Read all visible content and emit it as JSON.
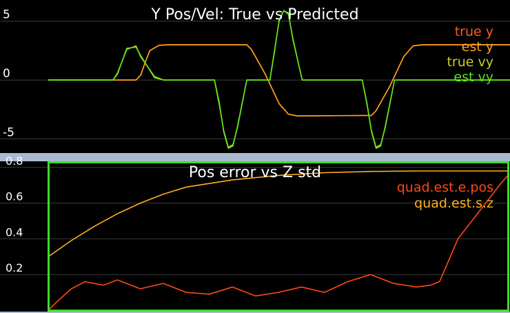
{
  "colors": {
    "frame": "#a9b9cf",
    "plot_bg": "#000000",
    "grid": "#3c3c3c",
    "axis_text": "#ffffff",
    "active_border": "#3ddc2a"
  },
  "chart_data": [
    {
      "type": "line",
      "title": "Y Pos/Vel: True vs Predicted",
      "xlabel": "",
      "ylabel": "",
      "ylim": [
        -6.2,
        6.8
      ],
      "xlim": [
        0,
        1
      ],
      "yticks": [
        "5",
        "0",
        "-5"
      ],
      "ytick_values": [
        5,
        0,
        -5
      ],
      "grid": true,
      "legend_placement": "top-right",
      "series": [
        {
          "name": "true y",
          "color": "#ff5a1e",
          "x": [
            0.0,
            0.19,
            0.2,
            0.21,
            0.22,
            0.24,
            0.26,
            0.43,
            0.44,
            0.47,
            0.5,
            0.52,
            0.54,
            0.7,
            0.71,
            0.74,
            0.77,
            0.79,
            0.81,
            1.0
          ],
          "values": [
            0,
            0,
            0.4,
            1.5,
            2.5,
            2.95,
            3.0,
            3.0,
            2.6,
            0.5,
            -2.0,
            -2.9,
            -3.05,
            -3.0,
            -2.6,
            -0.5,
            2.0,
            2.9,
            3.0,
            3.0
          ]
        },
        {
          "name": "est y",
          "color": "#ffa21e",
          "x": [
            0.0,
            0.19,
            0.2,
            0.21,
            0.22,
            0.24,
            0.26,
            0.43,
            0.44,
            0.47,
            0.5,
            0.52,
            0.54,
            0.7,
            0.71,
            0.74,
            0.77,
            0.79,
            0.81,
            1.0
          ],
          "values": [
            0,
            0,
            0.4,
            1.5,
            2.5,
            2.95,
            3.0,
            3.0,
            2.6,
            0.5,
            -2.0,
            -2.9,
            -3.05,
            -3.0,
            -2.6,
            -0.5,
            2.0,
            2.9,
            3.0,
            3.0
          ]
        },
        {
          "name": "true vy",
          "color": "#c8d21e",
          "x": [
            0.0,
            0.14,
            0.15,
            0.17,
            0.19,
            0.2,
            0.23,
            0.25,
            0.36,
            0.37,
            0.38,
            0.39,
            0.4,
            0.41,
            0.43,
            0.48,
            0.49,
            0.5,
            0.51,
            0.52,
            0.53,
            0.55,
            0.68,
            0.69,
            0.7,
            0.71,
            0.72,
            0.73,
            0.75,
            1.0
          ],
          "values": [
            0,
            0,
            0.6,
            2.6,
            2.9,
            2.0,
            0.3,
            0.0,
            0.0,
            -2.0,
            -4.3,
            -5.7,
            -5.5,
            -4.0,
            0.0,
            0.0,
            2.5,
            5.0,
            5.9,
            5.6,
            3.5,
            0.0,
            0.0,
            -2.0,
            -4.3,
            -5.7,
            -5.5,
            -4.0,
            0.0,
            0.0
          ]
        },
        {
          "name": "est vy",
          "color": "#5ae61e",
          "x": [
            0.0,
            0.14,
            0.15,
            0.17,
            0.19,
            0.2,
            0.23,
            0.25,
            0.36,
            0.37,
            0.38,
            0.39,
            0.4,
            0.41,
            0.43,
            0.48,
            0.49,
            0.5,
            0.51,
            0.52,
            0.53,
            0.55,
            0.68,
            0.69,
            0.7,
            0.71,
            0.72,
            0.73,
            0.75,
            1.0
          ],
          "values": [
            0,
            0,
            0.5,
            2.7,
            2.8,
            2.1,
            0.2,
            0.0,
            0.0,
            -1.8,
            -4.4,
            -5.8,
            -5.6,
            -3.9,
            0.0,
            0.0,
            2.4,
            5.1,
            5.9,
            5.7,
            3.4,
            0.0,
            0.0,
            -1.9,
            -4.4,
            -5.8,
            -5.6,
            -3.9,
            0.0,
            0.0
          ]
        }
      ]
    },
    {
      "type": "line",
      "title": "Pos error vs Z std",
      "xlabel": "",
      "ylabel": "",
      "ylim": [
        0.0,
        0.83
      ],
      "xlim": [
        0,
        1
      ],
      "yticks": [
        "0.8",
        "0.6",
        "0.4",
        "0.2"
      ],
      "ytick_values": [
        0.8,
        0.6,
        0.4,
        0.2
      ],
      "grid": true,
      "legend_placement": "top-right",
      "series": [
        {
          "name": "quad.est.e.pos",
          "color": "#ff4a12",
          "x": [
            0.0,
            0.02,
            0.05,
            0.08,
            0.12,
            0.15,
            0.2,
            0.25,
            0.3,
            0.35,
            0.4,
            0.45,
            0.5,
            0.55,
            0.6,
            0.65,
            0.7,
            0.75,
            0.8,
            0.83,
            0.85,
            0.87,
            0.89,
            0.92,
            0.95,
            0.98,
            1.0
          ],
          "values": [
            0.0,
            0.05,
            0.12,
            0.16,
            0.14,
            0.17,
            0.12,
            0.15,
            0.1,
            0.09,
            0.13,
            0.08,
            0.1,
            0.13,
            0.1,
            0.16,
            0.2,
            0.15,
            0.13,
            0.14,
            0.16,
            0.28,
            0.4,
            0.5,
            0.6,
            0.7,
            0.76
          ]
        },
        {
          "name": "quad.est.s.z",
          "color": "#ffb21e",
          "x": [
            0.0,
            0.05,
            0.1,
            0.15,
            0.2,
            0.25,
            0.3,
            0.4,
            0.5,
            0.6,
            0.7,
            0.8,
            0.9,
            1.0
          ],
          "values": [
            0.3,
            0.39,
            0.47,
            0.54,
            0.6,
            0.65,
            0.69,
            0.73,
            0.755,
            0.77,
            0.777,
            0.78,
            0.78,
            0.78
          ]
        }
      ]
    }
  ]
}
